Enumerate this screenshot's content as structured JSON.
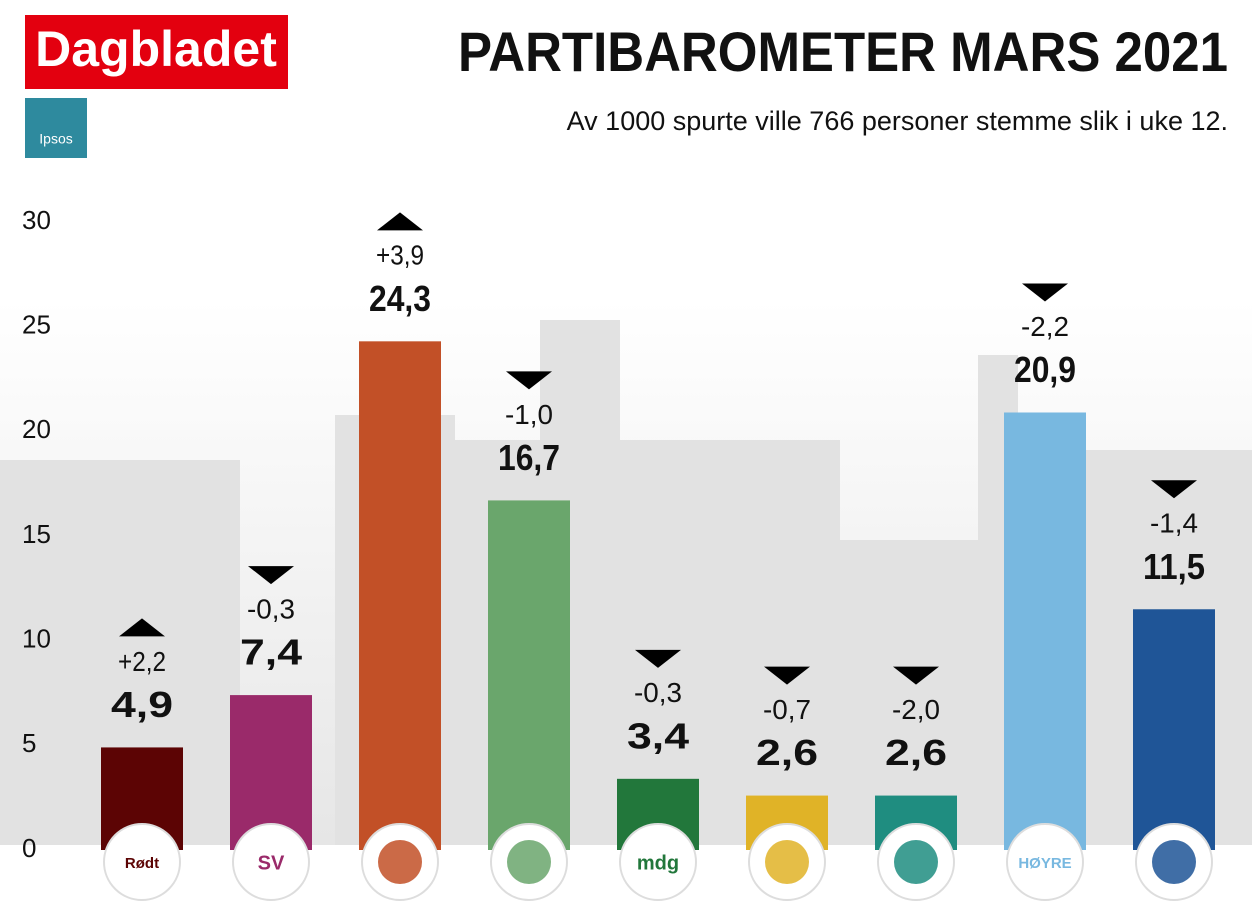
{
  "brand": "Dagbladet",
  "source_logo": "Ipsos",
  "chart_data": {
    "type": "bar",
    "title": "PARTIBAROMETER MARS 2021",
    "subtitle": "Av 1000 spurte ville 766 personer stemme slik i uke 12.",
    "categories": [
      "Rødt",
      "SV",
      null,
      null,
      "mdg",
      null,
      null,
      "HØYRE",
      null
    ],
    "values": [
      4.9,
      7.4,
      24.3,
      16.7,
      3.4,
      2.6,
      2.6,
      20.9,
      11.5
    ],
    "value_labels": [
      "4,9",
      "7,4",
      "24,3",
      "16,7",
      "3,4",
      "2,6",
      "2,6",
      "20,9",
      "11,5"
    ],
    "changes": [
      2.2,
      -0.3,
      3.9,
      -1.0,
      -0.3,
      -0.7,
      -2.0,
      -2.2,
      -1.4
    ],
    "change_labels": [
      "+2,2",
      "-0,3",
      "+3,9",
      "-1,0",
      "-0,3",
      "-0,7",
      "-2,0",
      "-2,2",
      "-1,4"
    ],
    "colors": [
      "#5c0404",
      "#9a2a6a",
      "#c25027",
      "#6aa66c",
      "#22773b",
      "#e0b327",
      "#1f8d80",
      "#78b8e0",
      "#1f5597"
    ],
    "ylim": [
      0,
      30
    ],
    "yticks": [
      0,
      5,
      10,
      15,
      20,
      25,
      30
    ],
    "grid": false
  }
}
